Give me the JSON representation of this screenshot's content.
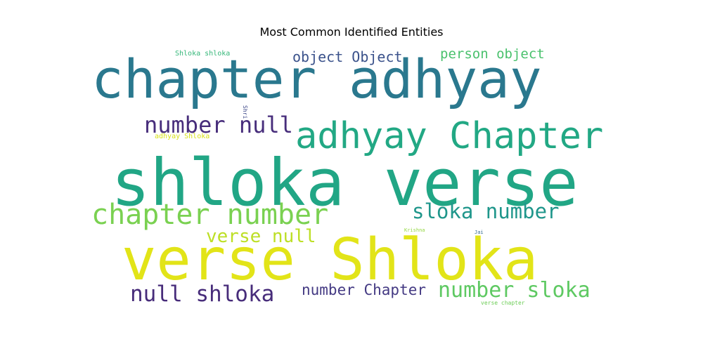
{
  "chart_data": {
    "type": "wordcloud",
    "title": "Most Common Identified Entities",
    "words": [
      {
        "text": "shloka verse",
        "color": "#21a685"
      },
      {
        "text": "verse Shloka",
        "color": "#e2e418"
      },
      {
        "text": "chapter adhyay",
        "color": "#2a788e"
      },
      {
        "text": "adhyay Chapter",
        "color": "#22a884"
      },
      {
        "text": "chapter number",
        "color": "#7ad151"
      },
      {
        "text": "number null",
        "color": "#472d7b"
      },
      {
        "text": "sloka number",
        "color": "#1f968b"
      },
      {
        "text": "null shloka",
        "color": "#472c7a"
      },
      {
        "text": "number sloka",
        "color": "#5ec962"
      },
      {
        "text": "number Chapter",
        "color": "#443a83"
      },
      {
        "text": "object Object",
        "color": "#3b528b"
      },
      {
        "text": "person object",
        "color": "#4ac16d"
      },
      {
        "text": "verse null",
        "color": "#bddf26"
      },
      {
        "text": "Shloka shloka",
        "color": "#35b779"
      },
      {
        "text": "adhyay Shloka",
        "color": "#d8e219"
      },
      {
        "text": "Shri",
        "color": "#3e4989"
      },
      {
        "text": "Krishna",
        "color": "#93d741"
      },
      {
        "text": "Jai",
        "color": "#31688e"
      },
      {
        "text": "verse chapter",
        "color": "#6ece58"
      }
    ]
  }
}
